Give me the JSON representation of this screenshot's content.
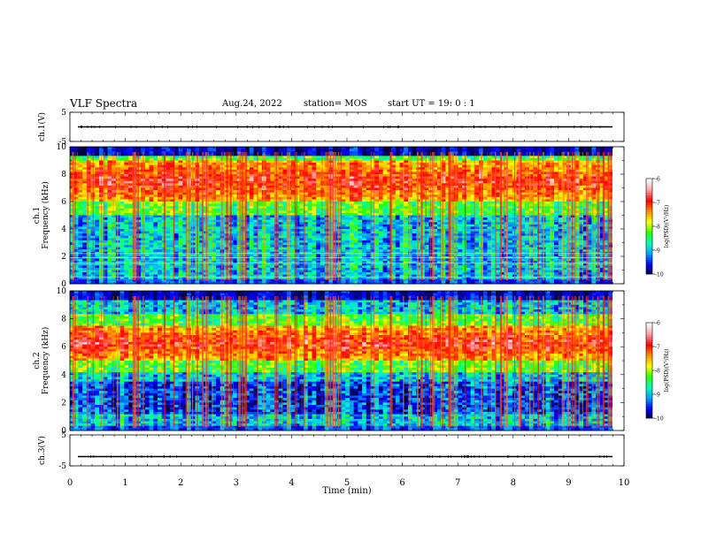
{
  "header": {
    "title": "VLF Spectra",
    "date": "Aug.24, 2022",
    "station": "station= MOS",
    "start_ut": "start  UT =   19: 0  : 1"
  },
  "chart_data": [
    {
      "type": "line",
      "panel": "ch1-voltage",
      "ylabel": "ch.1(V)",
      "ylim": [
        -5,
        5
      ],
      "yticks": [
        "5",
        "-5"
      ],
      "xlim": [
        0,
        10
      ],
      "series": [
        {
          "values": [
            0,
            0
          ]
        }
      ]
    },
    {
      "type": "heatmap",
      "panel": "ch1-spectrogram",
      "ylabel": "ch.1\nFrequency (kHz)",
      "ylim": [
        0,
        10
      ],
      "yticks": [
        "0",
        "2",
        "4",
        "6",
        "8",
        "10"
      ],
      "xlim": [
        0,
        9.85
      ],
      "intense_band_khz": [
        6,
        9
      ],
      "colorbar": {
        "label": "log(PSD)(V²/Hz)",
        "range": [
          -10,
          -6
        ],
        "ticks": [
          "-6",
          "-7",
          "-8",
          "-9",
          "-10"
        ]
      }
    },
    {
      "type": "heatmap",
      "panel": "ch2-spectrogram",
      "ylabel": "ch.2\nFrequency (kHz)",
      "ylim": [
        0,
        10
      ],
      "yticks": [
        "0",
        "2",
        "4",
        "6",
        "8",
        "10"
      ],
      "xlim": [
        0,
        9.85
      ],
      "intense_band_khz": [
        5,
        7.5
      ],
      "colorbar": {
        "label": "log(PSD)(V²/Hz)",
        "range": [
          -10,
          -6
        ],
        "ticks": [
          "-6",
          "-7",
          "-8",
          "-9",
          "-10"
        ]
      }
    },
    {
      "type": "line",
      "panel": "ch3-voltage",
      "ylabel": "ch.3(V)",
      "ylim": [
        -5,
        5
      ],
      "yticks": [
        "5",
        "-5"
      ],
      "xlim": [
        0,
        10
      ],
      "series": [
        {
          "values": [
            -2,
            -2
          ]
        }
      ]
    }
  ],
  "xaxis": {
    "label": "Time (min)",
    "ticks": [
      "0",
      "1",
      "2",
      "3",
      "4",
      "5",
      "6",
      "7",
      "8",
      "9",
      "10"
    ]
  },
  "colors": {
    "colormap": [
      "#00003a",
      "#0000ff",
      "#00a0ff",
      "#00ffc0",
      "#30ff00",
      "#ffff00",
      "#ff9000",
      "#ff0000",
      "#ffa0a0",
      "#ffffff"
    ]
  }
}
